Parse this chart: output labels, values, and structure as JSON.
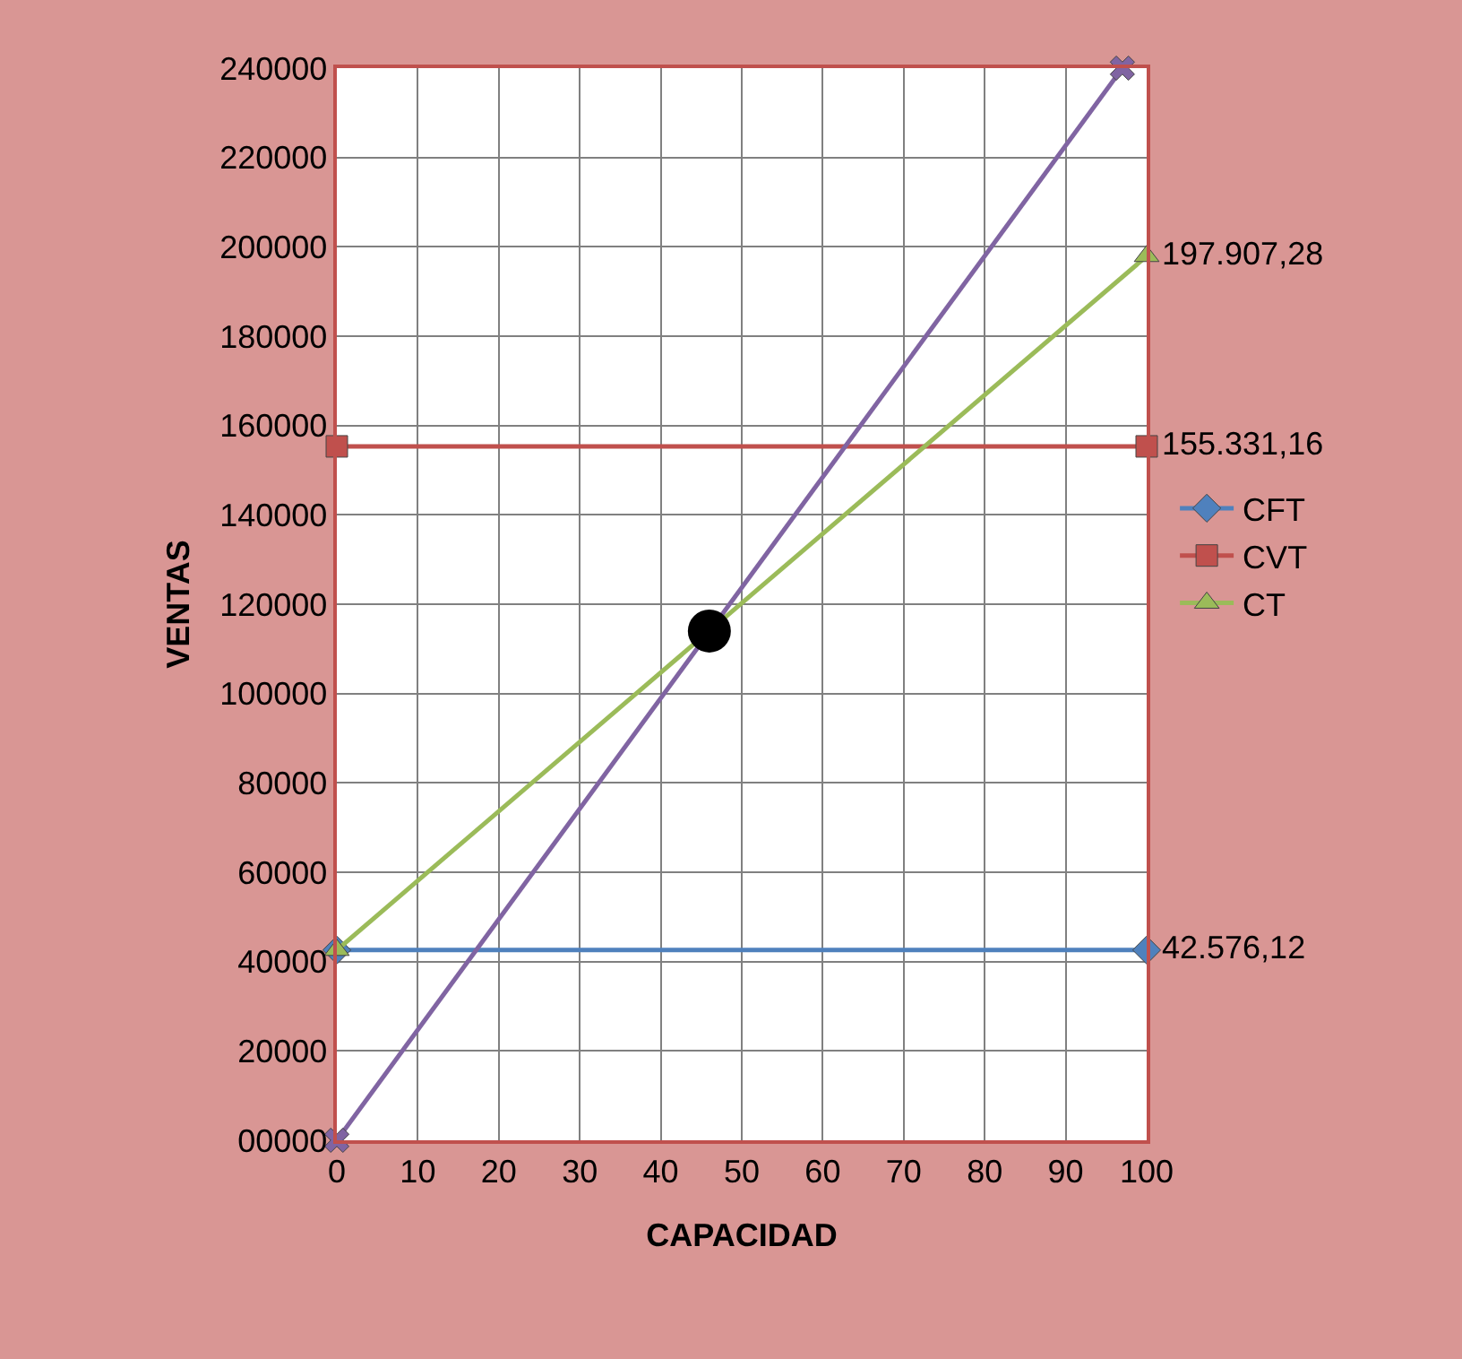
{
  "chart_data": {
    "type": "line",
    "xlabel": "CAPACIDAD",
    "ylabel": "VENTAS",
    "x": [
      0,
      100
    ],
    "xlim": [
      0,
      100
    ],
    "xticks": [
      0,
      10,
      20,
      30,
      40,
      50,
      60,
      70,
      80,
      90,
      100
    ],
    "ylim": [
      0,
      240000
    ],
    "yticks": [
      {
        "value": 0,
        "label": "00000"
      },
      20000,
      40000,
      60000,
      80000,
      100000,
      120000,
      140000,
      160000,
      180000,
      200000,
      220000,
      240000
    ],
    "series": [
      {
        "name": "CFT",
        "color": "#4f81bd",
        "values": [
          42576.12,
          42576.12
        ],
        "marker": "diamond",
        "value_labels": [
          null,
          "42.576,12"
        ]
      },
      {
        "name": "CVT",
        "color": "#c0504d",
        "values": [
          155331.16,
          155331.16
        ],
        "marker": "square",
        "value_labels": [
          null,
          "155.331,16"
        ]
      },
      {
        "name": "CT",
        "color": "#9bbb59",
        "values": [
          42576.12,
          197907.28
        ],
        "marker": "triangle",
        "value_labels": [
          null,
          "197.907,28"
        ]
      },
      {
        "color": "#8064a2",
        "x": [
          0,
          97
        ],
        "values": [
          0,
          240000
        ],
        "marker": "cross"
      },
      {
        "type": "scatter",
        "color": "#000000",
        "x": [
          46
        ],
        "values": [
          114000
        ],
        "marker": "circle"
      }
    ],
    "grid": true,
    "legend": "right"
  }
}
